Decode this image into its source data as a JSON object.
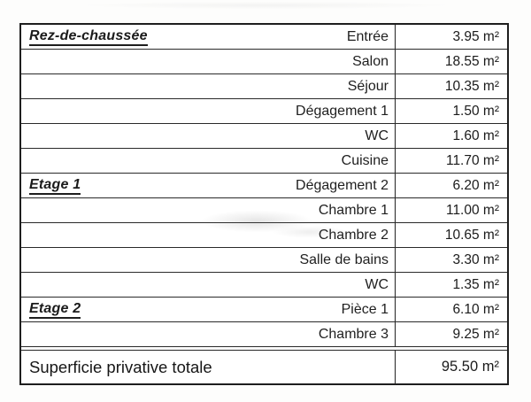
{
  "document": {
    "type": "scanned-area-table",
    "colors": {
      "border": "#1e1e1e",
      "text": "#1b1b1b",
      "background": "#ffffff"
    },
    "unit": "m²",
    "table": {
      "rows": [
        {
          "floor": "Rez-de-chaussée",
          "room": "Entrée",
          "area": "3.95 m²"
        },
        {
          "floor": "",
          "room": "Salon",
          "area": "18.55 m²"
        },
        {
          "floor": "",
          "room": "Séjour",
          "area": "10.35 m²"
        },
        {
          "floor": "",
          "room": "Dégagement 1",
          "area": "1.50 m²"
        },
        {
          "floor": "",
          "room": "WC",
          "area": "1.60 m²"
        },
        {
          "floor": "",
          "room": "Cuisine",
          "area": "11.70 m²"
        },
        {
          "floor": "Etage 1",
          "room": "Dégagement 2",
          "area": "6.20 m²"
        },
        {
          "floor": "",
          "room": "Chambre 1",
          "area": "11.00 m²"
        },
        {
          "floor": "",
          "room": "Chambre 2",
          "area": "10.65 m²"
        },
        {
          "floor": "",
          "room": "Salle de bains",
          "area": "3.30 m²"
        },
        {
          "floor": "",
          "room": "WC",
          "area": "1.35 m²"
        },
        {
          "floor": "Etage 2",
          "room": "Pièce 1",
          "area": "6.10 m²"
        },
        {
          "floor": "",
          "room": "Chambre 3",
          "area": "9.25 m²"
        }
      ],
      "total": {
        "label": "Superficie privative totale",
        "area": "95.50 m²"
      }
    }
  }
}
